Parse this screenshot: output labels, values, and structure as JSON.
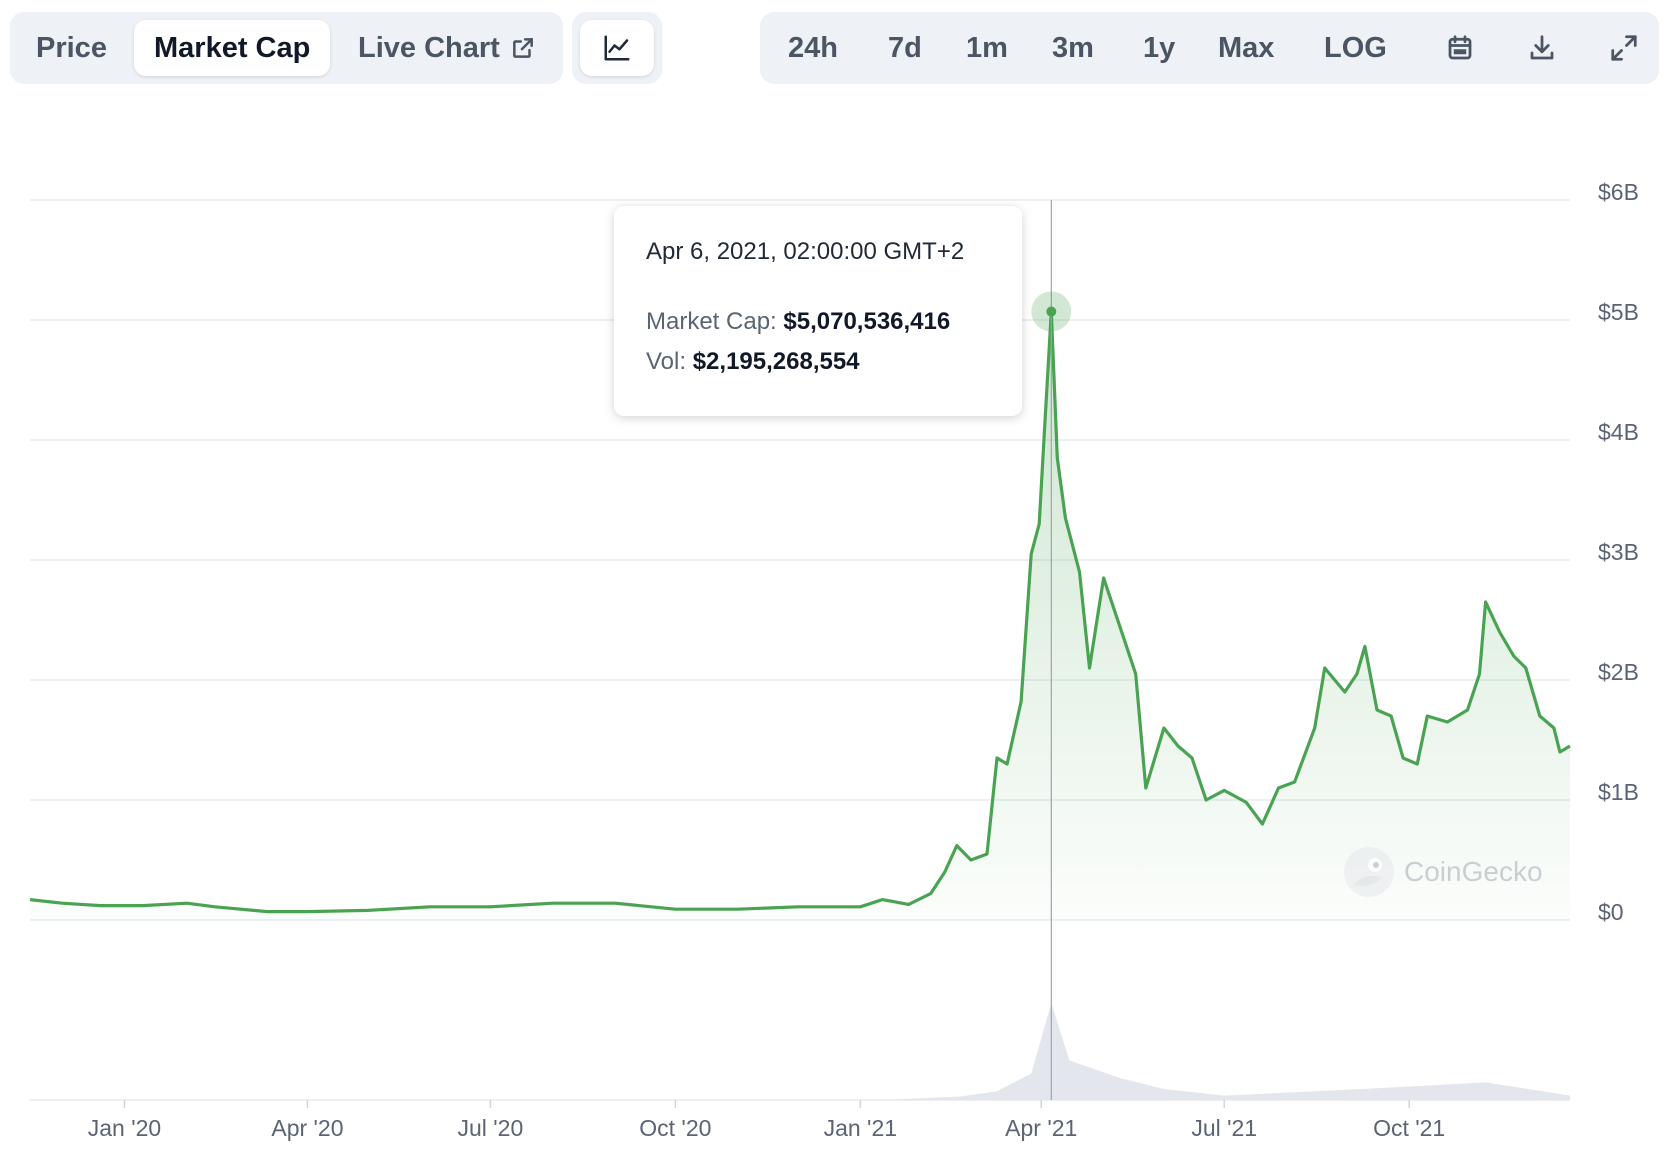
{
  "tabs": {
    "price": "Price",
    "market_cap": "Market Cap",
    "live_chart": "Live Chart"
  },
  "ranges": [
    "24h",
    "7d",
    "1m",
    "3m",
    "1y",
    "Max",
    "LOG"
  ],
  "icons": {
    "chart_type": "line-chart-icon",
    "external": "external-link-icon",
    "calendar": "calendar-icon",
    "download": "download-icon",
    "fullscreen": "expand-icon"
  },
  "tooltip": {
    "date": "Apr 6, 2021, 02:00:00 GMT+2",
    "market_cap_label": "Market Cap:",
    "market_cap_value": "$5,070,536,416",
    "vol_label": "Vol:",
    "vol_value": "$2,195,268,554"
  },
  "watermark": "CoinGecko",
  "colors": {
    "line": "#4aa352",
    "fill": "#4aa352",
    "volume": "#e3e6ec"
  },
  "chart_data": {
    "type": "area",
    "title": "",
    "xlabel": "",
    "ylabel": "",
    "x_ticks": [
      "Jan '20",
      "Apr '20",
      "Jul '20",
      "Oct '20",
      "Jan '21",
      "Apr '21",
      "Jul '21",
      "Oct '21"
    ],
    "y_ticks": [
      "$0",
      "$1B",
      "$2B",
      "$3B",
      "$4B",
      "$5B",
      "$6B"
    ],
    "ylim": [
      0,
      6000000000
    ],
    "xlim": [
      "2019-11-15",
      "2021-12-20"
    ],
    "grid": true,
    "highlight": {
      "x": "2021-04-06",
      "y": 5070536416
    },
    "series": [
      {
        "values": [
          [
            "2019-11-15",
            0.17
          ],
          [
            "2019-12-01",
            0.14
          ],
          [
            "2019-12-20",
            0.12
          ],
          [
            "2020-01-10",
            0.12
          ],
          [
            "2020-02-01",
            0.14
          ],
          [
            "2020-02-15",
            0.11
          ],
          [
            "2020-03-12",
            0.07
          ],
          [
            "2020-04-01",
            0.07
          ],
          [
            "2020-05-01",
            0.08
          ],
          [
            "2020-06-01",
            0.11
          ],
          [
            "2020-07-01",
            0.11
          ],
          [
            "2020-08-01",
            0.14
          ],
          [
            "2020-09-01",
            0.14
          ],
          [
            "2020-10-01",
            0.09
          ],
          [
            "2020-11-01",
            0.09
          ],
          [
            "2020-12-01",
            0.11
          ],
          [
            "2021-01-01",
            0.11
          ],
          [
            "2021-01-12",
            0.17
          ],
          [
            "2021-01-25",
            0.13
          ],
          [
            "2021-02-05",
            0.22
          ],
          [
            "2021-02-12",
            0.4
          ],
          [
            "2021-02-18",
            0.62
          ],
          [
            "2021-02-25",
            0.5
          ],
          [
            "2021-03-05",
            0.55
          ],
          [
            "2021-03-10",
            1.35
          ],
          [
            "2021-03-15",
            1.3
          ],
          [
            "2021-03-22",
            1.82
          ],
          [
            "2021-03-27",
            3.05
          ],
          [
            "2021-03-31",
            3.3
          ],
          [
            "2021-04-03",
            4.2
          ],
          [
            "2021-04-06",
            5.07
          ],
          [
            "2021-04-09",
            3.85
          ],
          [
            "2021-04-13",
            3.35
          ],
          [
            "2021-04-20",
            2.9
          ],
          [
            "2021-04-25",
            2.1
          ],
          [
            "2021-05-02",
            2.85
          ],
          [
            "2021-05-10",
            2.45
          ],
          [
            "2021-05-18",
            2.05
          ],
          [
            "2021-05-23",
            1.1
          ],
          [
            "2021-06-01",
            1.6
          ],
          [
            "2021-06-08",
            1.45
          ],
          [
            "2021-06-15",
            1.35
          ],
          [
            "2021-06-22",
            1.0
          ],
          [
            "2021-07-01",
            1.08
          ],
          [
            "2021-07-12",
            0.98
          ],
          [
            "2021-07-20",
            0.8
          ],
          [
            "2021-07-28",
            1.1
          ],
          [
            "2021-08-05",
            1.15
          ],
          [
            "2021-08-15",
            1.6
          ],
          [
            "2021-08-20",
            2.1
          ],
          [
            "2021-08-30",
            1.9
          ],
          [
            "2021-09-05",
            2.05
          ],
          [
            "2021-09-09",
            2.28
          ],
          [
            "2021-09-15",
            1.75
          ],
          [
            "2021-09-22",
            1.7
          ],
          [
            "2021-09-28",
            1.35
          ],
          [
            "2021-10-05",
            1.3
          ],
          [
            "2021-10-10",
            1.7
          ],
          [
            "2021-10-20",
            1.65
          ],
          [
            "2021-10-30",
            1.75
          ],
          [
            "2021-11-05",
            2.05
          ],
          [
            "2021-11-08",
            2.65
          ],
          [
            "2021-11-15",
            2.4
          ],
          [
            "2021-11-22",
            2.2
          ],
          [
            "2021-11-28",
            2.1
          ],
          [
            "2021-12-05",
            1.7
          ],
          [
            "2021-12-12",
            1.6
          ],
          [
            "2021-12-15",
            1.4
          ],
          [
            "2021-12-20",
            1.45
          ]
        ],
        "value_unit": "billion USD"
      }
    ],
    "volume": [
      [
        "2019-11-15",
        0.01
      ],
      [
        "2020-06-01",
        0.01
      ],
      [
        "2021-01-15",
        0.01
      ],
      [
        "2021-02-20",
        0.08
      ],
      [
        "2021-03-10",
        0.2
      ],
      [
        "2021-03-27",
        0.6
      ],
      [
        "2021-04-06",
        2.2
      ],
      [
        "2021-04-15",
        0.9
      ],
      [
        "2021-05-10",
        0.5
      ],
      [
        "2021-06-01",
        0.25
      ],
      [
        "2021-07-01",
        0.1
      ],
      [
        "2021-09-08",
        0.25
      ],
      [
        "2021-11-08",
        0.4
      ],
      [
        "2021-12-20",
        0.1
      ]
    ]
  }
}
